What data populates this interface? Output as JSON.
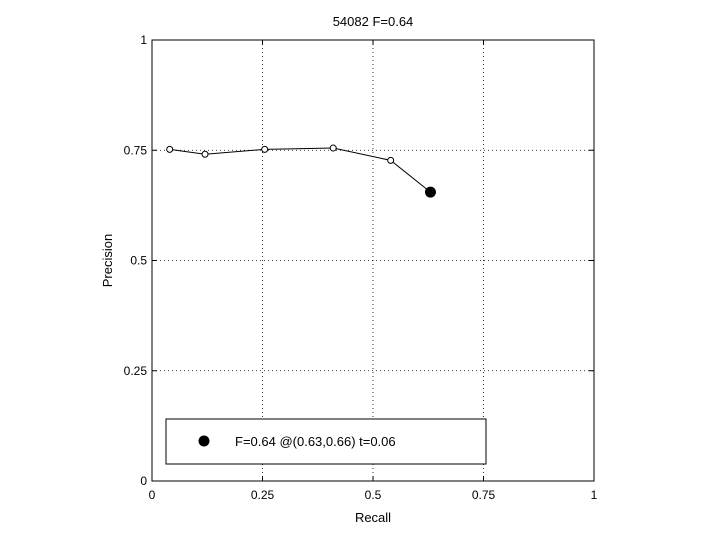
{
  "chart_data": {
    "type": "line",
    "title": "54082 F=0.64",
    "xlabel": "Recall",
    "ylabel": "Precision",
    "xlim": [
      0,
      1
    ],
    "ylim": [
      0,
      1
    ],
    "xticks": [
      0,
      0.25,
      0.5,
      0.75,
      1
    ],
    "yticks": [
      0,
      0.25,
      0.5,
      0.75,
      1
    ],
    "xtick_labels": [
      "0",
      "0.25",
      "0.5",
      "0.75",
      "1"
    ],
    "ytick_labels": [
      "0",
      "0.25",
      "0.5",
      "0.75",
      "1"
    ],
    "grid": true,
    "series": [
      {
        "x": [
          0.04,
          0.12,
          0.255,
          0.41,
          0.54,
          0.63
        ],
        "y": [
          0.752,
          0.741,
          0.752,
          0.755,
          0.727,
          0.655
        ]
      }
    ],
    "highlight_point": {
      "x": 0.63,
      "y": 0.655
    },
    "legend": {
      "position": "bottom-left",
      "entries": [
        "F=0.64 @(0.63,0.66) t=0.06"
      ]
    },
    "colors": {
      "line": "#000000",
      "marker_fill": "#000000",
      "background": "#ffffff"
    }
  }
}
